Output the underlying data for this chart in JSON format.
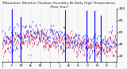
{
  "title": "Milwaukee Weather Outdoor Humidity At Daily High Temperature (Past Year)",
  "bg_color": "#f8f8f8",
  "grid_color": "#aaaaaa",
  "y_min": 10,
  "y_max": 100,
  "n_points": 365,
  "blue_color": "#0000ff",
  "red_color": "#ff0000",
  "tick_label_fontsize": 3.2,
  "title_fontsize": 3.2,
  "spike_positions": [
    30,
    60,
    200,
    270,
    295,
    315
  ],
  "spike_values": [
    98,
    85,
    97,
    96,
    95,
    88
  ],
  "yticks": [
    20,
    40,
    60,
    80,
    100
  ],
  "month_labels": [
    "J",
    "F",
    "M",
    "A",
    "M",
    "J",
    "J",
    "A",
    "S",
    "O",
    "N",
    "D",
    "J"
  ]
}
